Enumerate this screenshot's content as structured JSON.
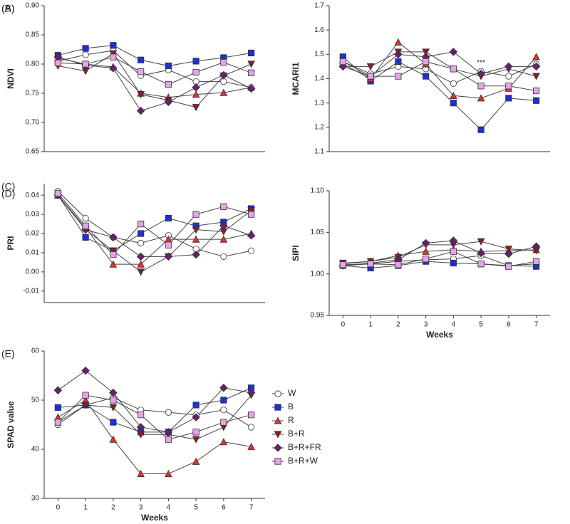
{
  "chart_data": [
    {
      "type": "line",
      "label": "(A)",
      "ylabel": "NDVI",
      "x": [
        0,
        1,
        2,
        3,
        4,
        5,
        6,
        7
      ],
      "xlim": [
        -0.5,
        7.5
      ],
      "ylim": [
        0.65,
        0.9
      ],
      "yticks": [
        0.65,
        {
          "value": 0.7,
          "label": "0.70"
        },
        0.75,
        {
          "value": 0.8,
          "label": "0.80"
        },
        0.85,
        {
          "value": 0.9,
          "label": "0.90"
        }
      ],
      "series": [
        {
          "color": "#ffffff",
          "marker": "circle",
          "values": [
            0.805,
            0.816,
            0.823,
            0.78,
            0.79,
            0.77,
            0.77,
            0.76
          ]
        },
        {
          "color": "#1f2fd6",
          "marker": "square",
          "values": [
            0.815,
            0.827,
            0.832,
            0.807,
            0.797,
            0.805,
            0.811,
            0.819
          ]
        },
        {
          "color": "#e0322c",
          "marker": "triangle-up",
          "values": [
            0.81,
            0.8,
            0.795,
            0.75,
            0.743,
            0.748,
            0.751,
            0.76
          ]
        },
        {
          "color": "#8b1a2e",
          "marker": "triangle-down",
          "values": [
            0.797,
            0.788,
            0.818,
            0.748,
            0.738,
            0.726,
            0.78,
            0.8
          ]
        },
        {
          "color": "#6a1f6e",
          "marker": "diamond",
          "values": [
            0.812,
            0.798,
            0.793,
            0.72,
            0.735,
            0.76,
            0.781,
            0.758
          ]
        },
        {
          "color": "#e7a3e8",
          "marker": "square",
          "values": [
            0.802,
            0.8,
            0.812,
            0.787,
            0.765,
            0.786,
            0.803,
            0.785
          ]
        }
      ]
    },
    {
      "type": "line",
      "label": "(B)",
      "ylabel": "MCARI1",
      "x": [
        0,
        1,
        2,
        3,
        4,
        5,
        6,
        7
      ],
      "xlim": [
        -0.5,
        7.5
      ],
      "ylim": [
        1.1,
        1.7
      ],
      "yticks": [
        1.1,
        1.2,
        1.3,
        1.4,
        1.5,
        1.6,
        1.7
      ],
      "annotations": [
        {
          "text": "***",
          "x": 5
        }
      ],
      "series": [
        {
          "color": "#ffffff",
          "marker": "circle",
          "values": [
            1.47,
            1.42,
            1.45,
            1.44,
            1.38,
            1.43,
            1.41,
            1.46
          ]
        },
        {
          "color": "#1f2fd6",
          "marker": "square",
          "values": [
            1.49,
            1.39,
            1.47,
            1.41,
            1.3,
            1.19,
            1.32,
            1.31
          ]
        },
        {
          "color": "#e0322c",
          "marker": "triangle-up",
          "values": [
            1.46,
            1.4,
            1.55,
            1.46,
            1.33,
            1.32,
            1.36,
            1.49
          ]
        },
        {
          "color": "#8b1a2e",
          "marker": "triangle-down",
          "values": [
            1.45,
            1.45,
            1.51,
            1.51,
            1.44,
            1.41,
            1.44,
            1.41
          ]
        },
        {
          "color": "#6a1f6e",
          "marker": "diamond",
          "values": [
            1.45,
            1.41,
            1.5,
            1.49,
            1.51,
            1.42,
            1.45,
            1.45
          ]
        },
        {
          "color": "#e7a3e8",
          "marker": "square",
          "values": [
            1.47,
            1.41,
            1.41,
            1.47,
            1.44,
            1.37,
            1.37,
            1.35
          ]
        }
      ]
    },
    {
      "type": "line",
      "label": "(C)",
      "ylabel": "PRI",
      "x": [
        0,
        1,
        2,
        3,
        4,
        5,
        6,
        7
      ],
      "xlim": [
        -0.5,
        7.5
      ],
      "ylim": [
        -0.016,
        0.046
      ],
      "yticks": [
        -0.01,
        {
          "value": 0,
          "label": "0.00"
        },
        0.01,
        0.02,
        0.03,
        0.04
      ],
      "series": [
        {
          "color": "#ffffff",
          "marker": "circle",
          "values": [
            0.042,
            0.028,
            0.018,
            0.015,
            0.019,
            0.012,
            0.008,
            0.011
          ]
        },
        {
          "color": "#1f2fd6",
          "marker": "square",
          "values": [
            0.04,
            0.018,
            0.011,
            0.02,
            0.028,
            0.024,
            0.026,
            0.033
          ]
        },
        {
          "color": "#e0322c",
          "marker": "triangle-up",
          "values": [
            0.04,
            0.023,
            0.004,
            0.004,
            0.017,
            0.017,
            0.017,
            0.02
          ]
        },
        {
          "color": "#8b1a2e",
          "marker": "triangle-down",
          "values": [
            0.04,
            0.022,
            0.011,
            0.0,
            0.008,
            0.022,
            0.021,
            0.032
          ]
        },
        {
          "color": "#6a1f6e",
          "marker": "diamond",
          "values": [
            0.04,
            0.022,
            0.018,
            0.008,
            0.008,
            0.009,
            0.024,
            0.019
          ]
        },
        {
          "color": "#e7a3e8",
          "marker": "square",
          "values": [
            0.041,
            0.024,
            0.009,
            0.025,
            0.014,
            0.03,
            0.034,
            0.03
          ]
        }
      ]
    },
    {
      "type": "line",
      "label": "(D)",
      "ylabel": "SIPI",
      "xlabel": "Weeks",
      "x": [
        0,
        1,
        2,
        3,
        4,
        5,
        6,
        7
      ],
      "xlim": [
        -0.5,
        7.5
      ],
      "xticks": [
        0,
        1,
        2,
        3,
        4,
        5,
        6,
        7
      ],
      "ylim": [
        0.95,
        1.1
      ],
      "yticks": [
        0.95,
        {
          "value": 1,
          "label": "1.00"
        },
        1.05,
        {
          "value": 1.1,
          "label": "1.10"
        }
      ],
      "series": [
        {
          "color": "#ffffff",
          "marker": "circle",
          "values": [
            1.01,
            1.012,
            1.015,
            1.017,
            1.018,
            1.022,
            1.01,
            1.012
          ]
        },
        {
          "color": "#1f2fd6",
          "marker": "square",
          "values": [
            1.01,
            1.007,
            1.01,
            1.015,
            1.013,
            1.012,
            1.01,
            1.009
          ]
        },
        {
          "color": "#e0322c",
          "marker": "triangle-up",
          "values": [
            1.012,
            1.015,
            1.022,
            1.027,
            1.029,
            1.027,
            1.028,
            1.029
          ]
        },
        {
          "color": "#8b1a2e",
          "marker": "triangle-down",
          "values": [
            1.013,
            1.015,
            1.02,
            1.035,
            1.035,
            1.039,
            1.03,
            1.028
          ]
        },
        {
          "color": "#6a1f6e",
          "marker": "diamond",
          "values": [
            1.01,
            1.013,
            1.017,
            1.037,
            1.04,
            1.025,
            1.024,
            1.033
          ]
        },
        {
          "color": "#e7a3e8",
          "marker": "square",
          "values": [
            1.011,
            1.012,
            1.011,
            1.018,
            1.027,
            1.012,
            1.009,
            1.015
          ]
        }
      ]
    },
    {
      "type": "line",
      "label": "(E)",
      "ylabel": "SPAD value",
      "xlabel": "Weeks",
      "x": [
        0,
        1,
        2,
        3,
        4,
        5,
        6,
        7
      ],
      "xlim": [
        -0.5,
        7.5
      ],
      "xticks": [
        0,
        1,
        2,
        3,
        4,
        5,
        6,
        7
      ],
      "ylim": [
        30,
        60
      ],
      "yticks": [
        30,
        40,
        50,
        60
      ],
      "legend": "right",
      "series": [
        {
          "name": "W",
          "color": "#ffffff",
          "marker": "circle",
          "values": [
            45,
            49,
            50.5,
            48,
            47.5,
            47,
            48,
            44.5
          ]
        },
        {
          "name": "B",
          "color": "#1f2fd6",
          "marker": "square",
          "values": [
            48.5,
            49,
            45.5,
            43.5,
            43.5,
            49,
            50,
            52.5
          ]
        },
        {
          "name": "R",
          "color": "#e0322c",
          "marker": "triangle-up",
          "values": [
            46.5,
            50,
            42,
            35,
            35,
            37.5,
            41.5,
            40.5
          ]
        },
        {
          "name": "B+R",
          "color": "#8b1a2e",
          "marker": "triangle-down",
          "values": [
            45.5,
            49,
            48.5,
            43,
            43,
            42,
            44.5,
            51
          ]
        },
        {
          "name": "B+R+FR",
          "color": "#6a1f6e",
          "marker": "diamond",
          "values": [
            52,
            56,
            51.5,
            44.5,
            43.5,
            46.5,
            52.5,
            51.5
          ]
        },
        {
          "name": "B+R+W",
          "color": "#e7a3e8",
          "marker": "square",
          "values": [
            45.5,
            51,
            50,
            47,
            42,
            43.5,
            45.5,
            47
          ]
        }
      ]
    }
  ]
}
